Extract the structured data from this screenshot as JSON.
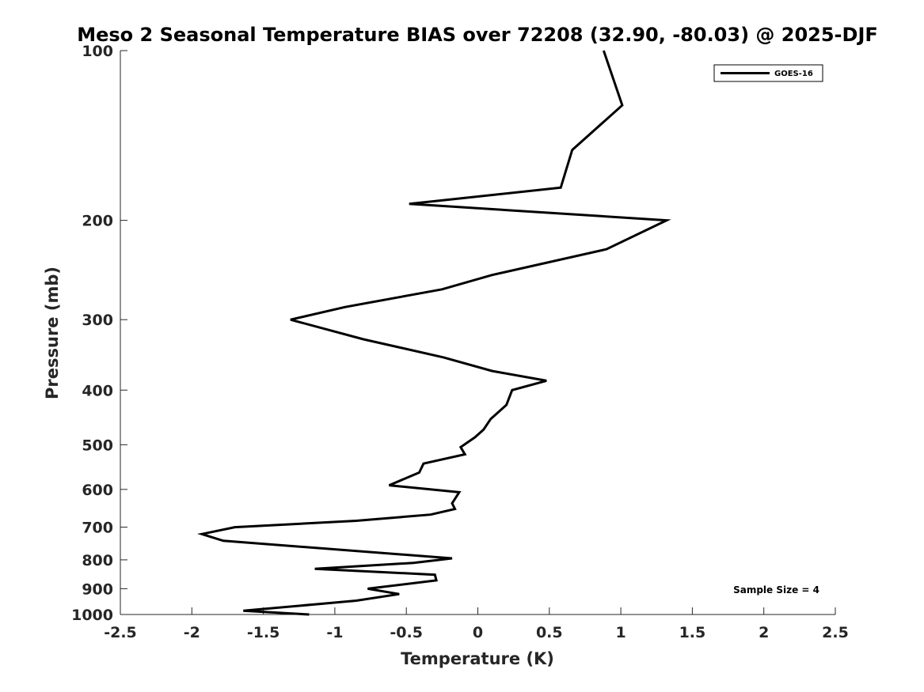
{
  "chart_data": {
    "type": "line",
    "title": "Meso 2 Seasonal Temperature BIAS over 72208 (32.90, -80.03) @ 2025-DJF",
    "xlabel": "Temperature (K)",
    "ylabel": "Pressure (mb)",
    "xlim": [
      -2.5,
      2.5
    ],
    "ylim": [
      100,
      1000
    ],
    "yscale": "log",
    "y_reversed": true,
    "x_ticks": [
      -2.5,
      -2,
      -1.5,
      -1,
      -0.5,
      0,
      0.5,
      1,
      1.5,
      2,
      2.5
    ],
    "x_tick_labels": [
      "-2.5",
      "-2",
      "-1.5",
      "-1",
      "-0.5",
      "0",
      "0.5",
      "1",
      "1.5",
      "2",
      "2.5"
    ],
    "y_ticks": [
      100,
      200,
      300,
      400,
      500,
      600,
      700,
      800,
      900,
      1000
    ],
    "y_tick_labels": [
      "100",
      "200",
      "300",
      "400",
      "500",
      "600",
      "700",
      "800",
      "900",
      "1000"
    ],
    "grid": false,
    "legend": {
      "position": "top-right",
      "entries": [
        "GOES-16"
      ]
    },
    "annotation": "Sample Size = 4",
    "series": [
      {
        "name": "GOES-16",
        "color": "#000000",
        "points": [
          {
            "x": 0.88,
            "p": 100
          },
          {
            "x": 1.01,
            "p": 125
          },
          {
            "x": 0.66,
            "p": 150
          },
          {
            "x": 0.58,
            "p": 175
          },
          {
            "x": -0.48,
            "p": 187
          },
          {
            "x": 1.32,
            "p": 200
          },
          {
            "x": 0.9,
            "p": 225
          },
          {
            "x": 0.1,
            "p": 250
          },
          {
            "x": -0.25,
            "p": 265
          },
          {
            "x": -0.93,
            "p": 285
          },
          {
            "x": -1.31,
            "p": 300
          },
          {
            "x": -0.8,
            "p": 325
          },
          {
            "x": -0.24,
            "p": 350
          },
          {
            "x": 0.1,
            "p": 370
          },
          {
            "x": 0.48,
            "p": 385
          },
          {
            "x": 0.24,
            "p": 400
          },
          {
            "x": 0.2,
            "p": 425
          },
          {
            "x": 0.09,
            "p": 450
          },
          {
            "x": 0.04,
            "p": 470
          },
          {
            "x": -0.02,
            "p": 485
          },
          {
            "x": -0.12,
            "p": 505
          },
          {
            "x": -0.09,
            "p": 520
          },
          {
            "x": -0.38,
            "p": 540
          },
          {
            "x": -0.41,
            "p": 560
          },
          {
            "x": -0.62,
            "p": 590
          },
          {
            "x": -0.13,
            "p": 607
          },
          {
            "x": -0.18,
            "p": 635
          },
          {
            "x": -0.16,
            "p": 650
          },
          {
            "x": -0.33,
            "p": 665
          },
          {
            "x": -0.85,
            "p": 682
          },
          {
            "x": -1.7,
            "p": 700
          },
          {
            "x": -1.93,
            "p": 720
          },
          {
            "x": -1.78,
            "p": 740
          },
          {
            "x": -0.18,
            "p": 795
          },
          {
            "x": -0.45,
            "p": 810
          },
          {
            "x": -1.14,
            "p": 830
          },
          {
            "x": -0.3,
            "p": 850
          },
          {
            "x": -0.29,
            "p": 870
          },
          {
            "x": -0.77,
            "p": 900
          },
          {
            "x": -0.55,
            "p": 920
          },
          {
            "x": -0.85,
            "p": 945
          },
          {
            "x": -1.64,
            "p": 985
          },
          {
            "x": -1.18,
            "p": 1000
          }
        ]
      }
    ]
  }
}
